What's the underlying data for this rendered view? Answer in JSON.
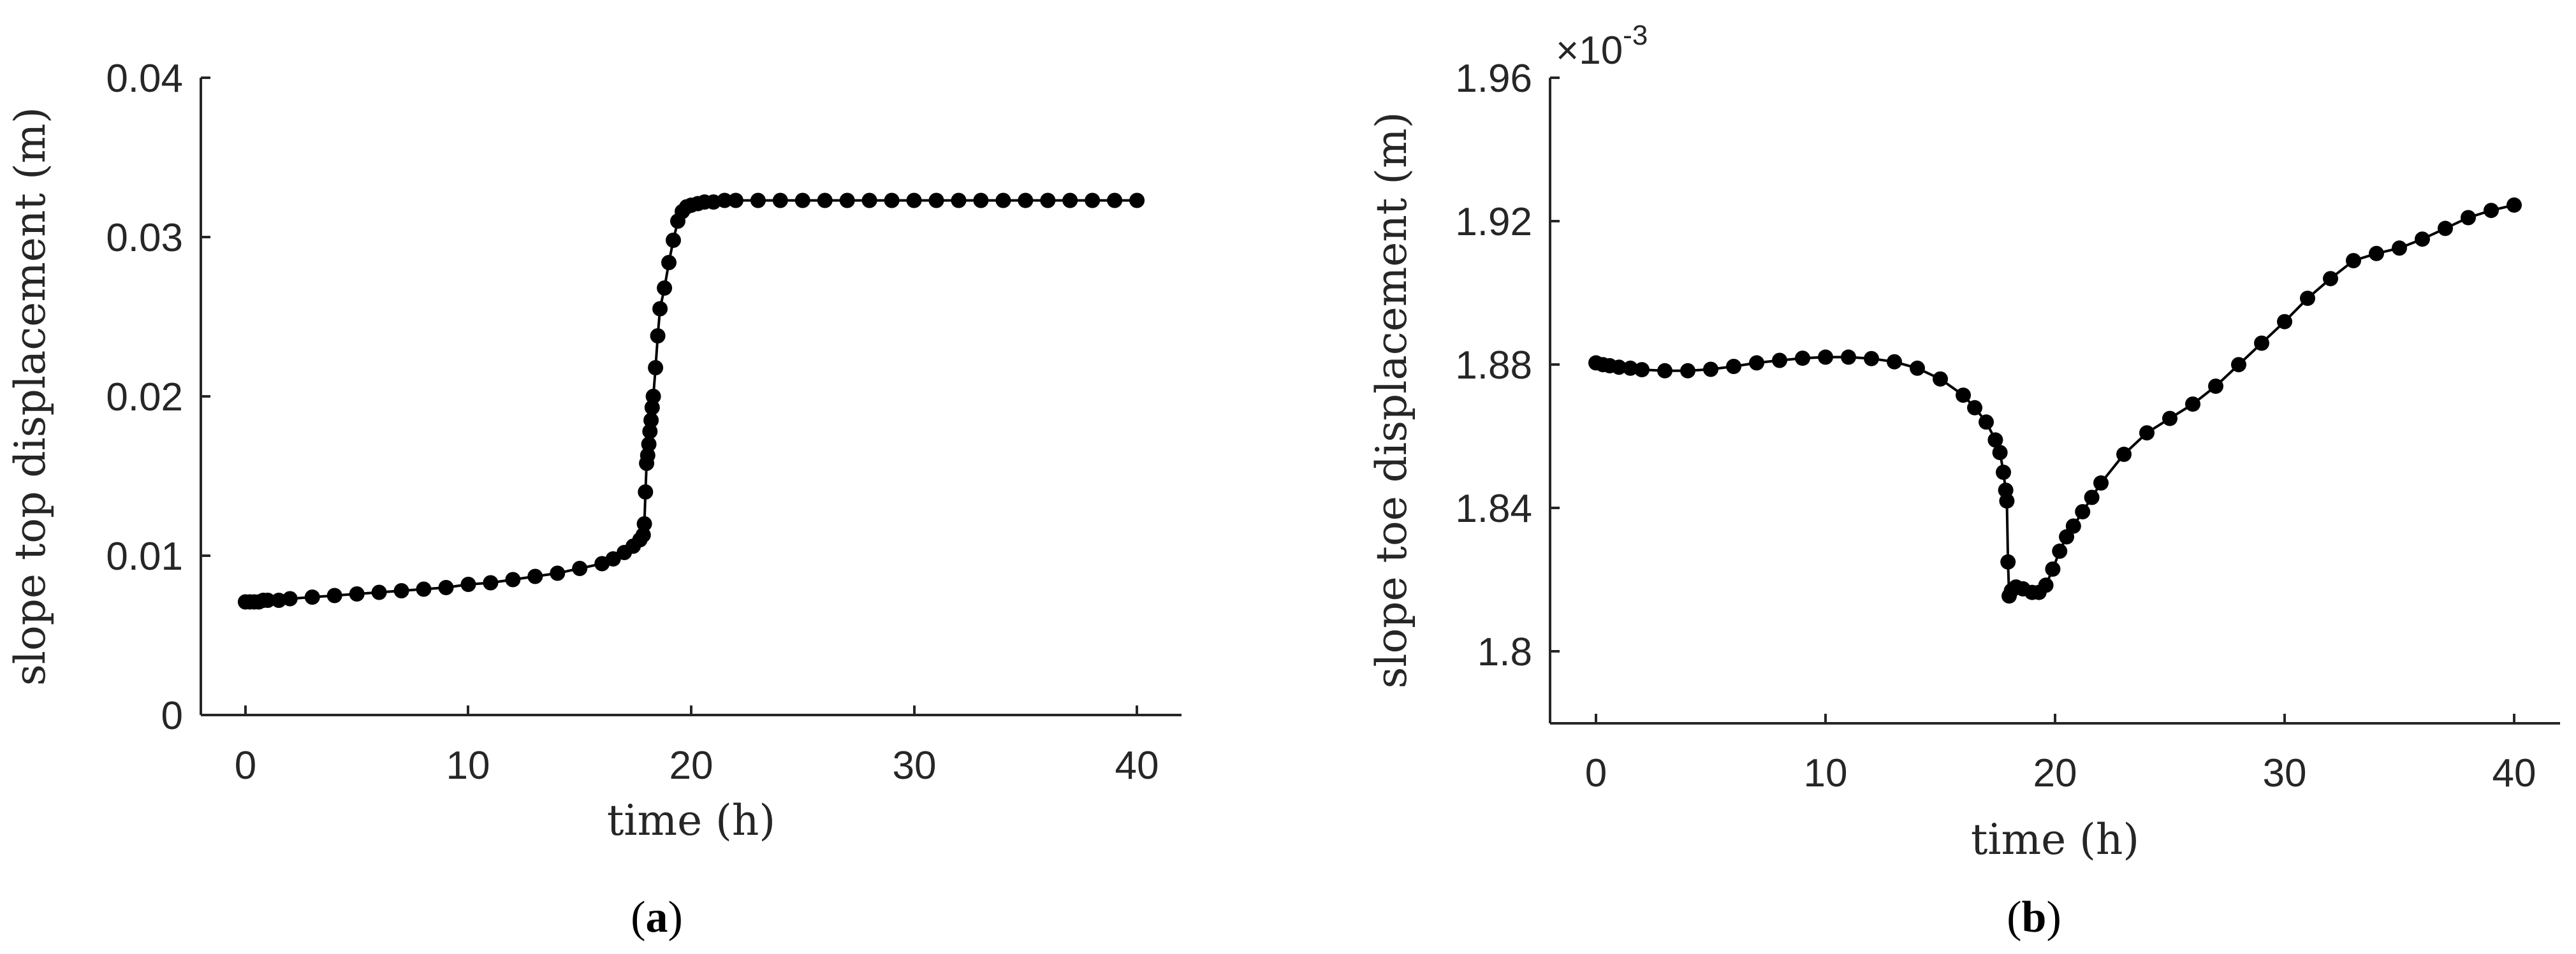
{
  "colors": {
    "series": "#000000",
    "axis": "#262626",
    "background": "#ffffff"
  },
  "panels": [
    {
      "open": "(",
      "letter": "a",
      "close": ")"
    },
    {
      "open": "(",
      "letter": "b",
      "close": ")"
    }
  ],
  "chart_data": [
    {
      "type": "line",
      "xlabel": "time (h)",
      "ylabel": "slope top displacement (m)",
      "xlim": [
        -2,
        42
      ],
      "ylim": [
        0,
        0.04
      ],
      "xticks": [
        0,
        10,
        20,
        30,
        40
      ],
      "xtick_labels": [
        "0",
        "10",
        "20",
        "30",
        "40"
      ],
      "yticks": [
        0,
        0.01,
        0.02,
        0.03,
        0.04
      ],
      "ytick_labels": [
        "0",
        "0.01",
        "0.02",
        "0.03",
        "0.04"
      ],
      "grid": false,
      "axes_box": false,
      "marker": "filled-circle",
      "series": [
        {
          "x": [
            0,
            0.2,
            0.4,
            0.6,
            0.8,
            1.0,
            1.5,
            2,
            3,
            4,
            5,
            6,
            7,
            8,
            9,
            10,
            11,
            12,
            13,
            14,
            15,
            16,
            16.5,
            17,
            17.4,
            17.7,
            17.85,
            17.9,
            17.95,
            18.0,
            18.05,
            18.1,
            18.15,
            18.2,
            18.25,
            18.3,
            18.4,
            18.5,
            18.6,
            18.8,
            19.0,
            19.2,
            19.4,
            19.6,
            19.8,
            20,
            20.3,
            20.6,
            21,
            21.5,
            22,
            23,
            24,
            25,
            26,
            27,
            28,
            29,
            30,
            31,
            32,
            33,
            34,
            35,
            36,
            37,
            38,
            39,
            40
          ],
          "y": [
            0.0071,
            0.0071,
            0.0071,
            0.0071,
            0.0072,
            0.0072,
            0.0072,
            0.0073,
            0.0074,
            0.0075,
            0.0076,
            0.0077,
            0.0078,
            0.0079,
            0.008,
            0.0082,
            0.0083,
            0.0085,
            0.0087,
            0.0089,
            0.0092,
            0.0095,
            0.0098,
            0.0102,
            0.0106,
            0.011,
            0.0113,
            0.012,
            0.014,
            0.0158,
            0.0163,
            0.017,
            0.0178,
            0.0185,
            0.0193,
            0.02,
            0.0218,
            0.0238,
            0.0255,
            0.0268,
            0.0284,
            0.0298,
            0.031,
            0.0316,
            0.0319,
            0.032,
            0.0321,
            0.0322,
            0.0322,
            0.0323,
            0.0323,
            0.0323,
            0.0323,
            0.0323,
            0.0323,
            0.0323,
            0.0323,
            0.0323,
            0.0323,
            0.0323,
            0.0323,
            0.0323,
            0.0323,
            0.0323,
            0.0323,
            0.0323,
            0.0323,
            0.0323,
            0.0323
          ]
        }
      ]
    },
    {
      "type": "line",
      "xlabel": "time (h)",
      "ylabel": "slope toe displacement (m)",
      "exponent_base": "×10",
      "exponent_power": "-3",
      "xlim": [
        -2,
        42
      ],
      "ylim": [
        1.78,
        1.96
      ],
      "xticks": [
        0,
        10,
        20,
        30,
        40
      ],
      "xtick_labels": [
        "0",
        "10",
        "20",
        "30",
        "40"
      ],
      "yticks": [
        1.8,
        1.84,
        1.88,
        1.92,
        1.96
      ],
      "ytick_labels": [
        "1.8",
        "1.84",
        "1.88",
        "1.92",
        "1.96"
      ],
      "grid": false,
      "axes_box": false,
      "marker": "filled-circle",
      "series": [
        {
          "x": [
            0,
            0.3,
            0.6,
            1,
            1.5,
            2,
            3,
            4,
            5,
            6,
            7,
            8,
            9,
            10,
            11,
            12,
            13,
            14,
            15,
            16,
            16.5,
            17,
            17.4,
            17.6,
            17.75,
            17.85,
            17.9,
            17.95,
            18.0,
            18.1,
            18.3,
            18.6,
            19.0,
            19.3,
            19.6,
            19.9,
            20.2,
            20.5,
            20.8,
            21.2,
            21.6,
            22,
            23,
            24,
            25,
            26,
            27,
            28,
            29,
            30,
            31,
            32,
            33,
            34,
            35,
            36,
            37,
            38,
            39,
            40
          ],
          "y": [
            1.8805,
            1.88,
            1.8797,
            1.8793,
            1.879,
            1.8786,
            1.8783,
            1.8783,
            1.8787,
            1.8795,
            1.8805,
            1.8812,
            1.8818,
            1.8821,
            1.8821,
            1.8817,
            1.8808,
            1.879,
            1.876,
            1.8715,
            1.868,
            1.864,
            1.859,
            1.8555,
            1.85,
            1.845,
            1.842,
            1.825,
            1.8155,
            1.817,
            1.818,
            1.8175,
            1.8165,
            1.8165,
            1.8185,
            1.823,
            1.828,
            1.832,
            1.835,
            1.839,
            1.843,
            1.847,
            1.855,
            1.861,
            1.865,
            1.869,
            1.874,
            1.88,
            1.886,
            1.892,
            1.8985,
            1.904,
            1.909,
            1.911,
            1.9125,
            1.915,
            1.918,
            1.921,
            1.923,
            1.9245
          ]
        }
      ]
    }
  ]
}
